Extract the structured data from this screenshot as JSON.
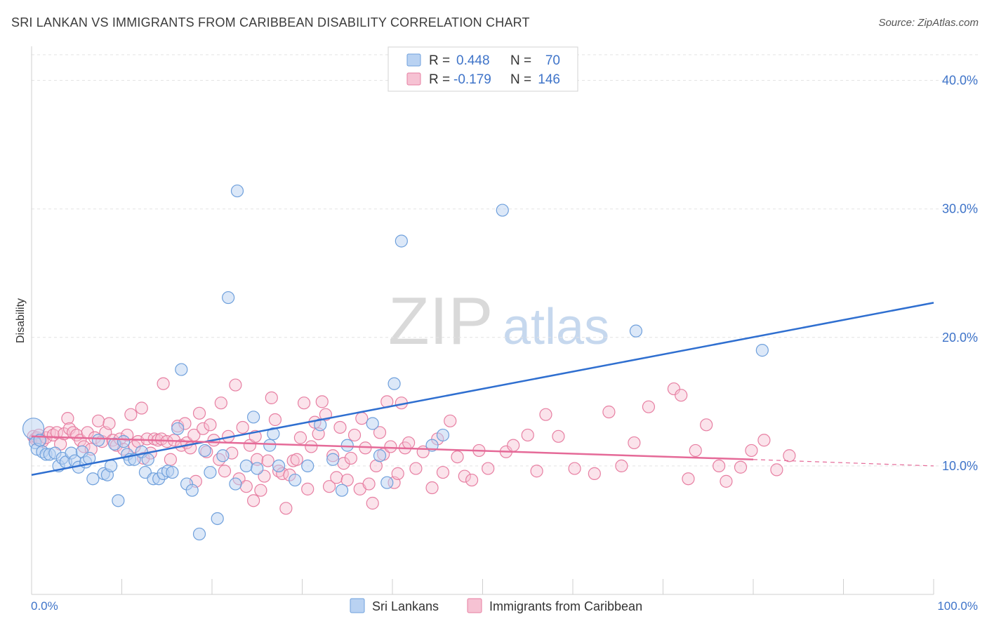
{
  "header": {
    "title": "SRI LANKAN VS IMMIGRANTS FROM CARIBBEAN DISABILITY CORRELATION CHART",
    "source": "Source: ZipAtlas.com"
  },
  "watermark": {
    "zip": "ZIP",
    "atlas": "atlas"
  },
  "stats": [
    {
      "r_label": "R =",
      "r_value": "0.448",
      "n_label": "N =",
      "n_value": "70"
    },
    {
      "r_label": "R =",
      "r_value": "-0.179",
      "n_label": "N =",
      "n_value": "146"
    }
  ],
  "colors": {
    "blue": "#6fa0dc",
    "blue_fill": "#b9d2f2",
    "blue_line": "#2f6fd0",
    "pink": "#e77fa2",
    "pink_fill": "#f6c2d3",
    "pink_line": "#e56a98",
    "axis_text": "#3f74c9"
  },
  "chart_data": {
    "type": "scatter",
    "title": "SRI LANKAN VS IMMIGRANTS FROM CARIBBEAN DISABILITY CORRELATION CHART",
    "xlabel": "",
    "ylabel": "Disability",
    "xlim": [
      0,
      100
    ],
    "ylim": [
      0,
      42
    ],
    "x_tick_labels": [
      "0.0%",
      "100.0%"
    ],
    "y_ticks": [
      10,
      20,
      30,
      40
    ],
    "y_tick_labels": [
      "10.0%",
      "20.0%",
      "30.0%",
      "40.0%"
    ],
    "grid": "horizontal dashed",
    "legend_position": "bottom",
    "series": [
      {
        "name": "Sri Lankans",
        "color": "#6fa0dc",
        "trend": {
          "x": [
            0,
            100
          ],
          "y": [
            9.3,
            22.7
          ]
        },
        "points": [
          [
            0.2,
            12.9
          ],
          [
            0.4,
            11.8
          ],
          [
            0.6,
            11.3
          ],
          [
            0.9,
            12.0
          ],
          [
            1.2,
            11.1
          ],
          [
            1.6,
            10.9
          ],
          [
            2.0,
            10.9
          ],
          [
            2.6,
            11.0
          ],
          [
            3.0,
            10.0
          ],
          [
            3.4,
            10.6
          ],
          [
            3.8,
            10.3
          ],
          [
            4.4,
            11.0
          ],
          [
            4.8,
            10.4
          ],
          [
            5.2,
            9.9
          ],
          [
            5.6,
            11.1
          ],
          [
            6.0,
            10.3
          ],
          [
            6.4,
            10.6
          ],
          [
            6.8,
            9.0
          ],
          [
            7.4,
            12.0
          ],
          [
            8.0,
            9.4
          ],
          [
            8.4,
            9.3
          ],
          [
            8.8,
            10.0
          ],
          [
            9.2,
            11.7
          ],
          [
            9.6,
            7.3
          ],
          [
            10.2,
            11.9
          ],
          [
            10.6,
            10.9
          ],
          [
            10.9,
            10.5
          ],
          [
            11.4,
            10.5
          ],
          [
            12.2,
            11.1
          ],
          [
            12.6,
            9.5
          ],
          [
            12.9,
            10.5
          ],
          [
            13.5,
            9.0
          ],
          [
            14.1,
            9.0
          ],
          [
            14.6,
            9.4
          ],
          [
            15.1,
            9.6
          ],
          [
            15.6,
            9.5
          ],
          [
            16.2,
            12.9
          ],
          [
            16.6,
            17.5
          ],
          [
            17.2,
            8.6
          ],
          [
            17.8,
            8.1
          ],
          [
            18.6,
            4.7
          ],
          [
            19.2,
            11.2
          ],
          [
            19.8,
            9.5
          ],
          [
            20.6,
            5.9
          ],
          [
            21.2,
            10.8
          ],
          [
            21.8,
            23.1
          ],
          [
            22.6,
            8.6
          ],
          [
            22.8,
            31.4
          ],
          [
            23.8,
            10.0
          ],
          [
            24.6,
            13.8
          ],
          [
            25.0,
            9.8
          ],
          [
            26.4,
            11.6
          ],
          [
            26.8,
            12.5
          ],
          [
            27.4,
            10.0
          ],
          [
            29.2,
            8.9
          ],
          [
            30.6,
            10.0
          ],
          [
            32.0,
            13.2
          ],
          [
            33.4,
            10.5
          ],
          [
            34.4,
            8.1
          ],
          [
            35.0,
            11.6
          ],
          [
            37.8,
            13.3
          ],
          [
            38.6,
            10.8
          ],
          [
            39.4,
            8.7
          ],
          [
            40.2,
            16.4
          ],
          [
            41.0,
            27.5
          ],
          [
            44.4,
            11.6
          ],
          [
            45.6,
            12.4
          ],
          [
            52.2,
            29.9
          ],
          [
            67.0,
            20.5
          ],
          [
            81.0,
            19.0
          ]
        ]
      },
      {
        "name": "Immigrants from Caribbean",
        "color": "#e77fa2",
        "trend": {
          "x": [
            0,
            80,
            100
          ],
          "y": [
            12.3,
            10.5,
            10.0
          ]
        },
        "points": [
          [
            0.2,
            12.3
          ],
          [
            0.4,
            12.1
          ],
          [
            0.6,
            12.2
          ],
          [
            0.8,
            12.4
          ],
          [
            1.0,
            12.0
          ],
          [
            1.2,
            11.9
          ],
          [
            1.6,
            12.2
          ],
          [
            2.0,
            12.6
          ],
          [
            2.4,
            12.4
          ],
          [
            2.8,
            12.6
          ],
          [
            3.2,
            11.7
          ],
          [
            3.6,
            12.5
          ],
          [
            4.0,
            13.7
          ],
          [
            4.2,
            12.9
          ],
          [
            4.6,
            12.6
          ],
          [
            5.0,
            12.4
          ],
          [
            5.4,
            12.0
          ],
          [
            5.8,
            11.5
          ],
          [
            6.2,
            12.6
          ],
          [
            6.6,
            11.3
          ],
          [
            7.0,
            12.2
          ],
          [
            7.4,
            13.5
          ],
          [
            7.8,
            11.9
          ],
          [
            8.2,
            12.6
          ],
          [
            8.6,
            13.3
          ],
          [
            9.0,
            12.0
          ],
          [
            9.4,
            11.6
          ],
          [
            9.8,
            12.1
          ],
          [
            10.2,
            11.3
          ],
          [
            10.6,
            12.4
          ],
          [
            11.0,
            14.0
          ],
          [
            11.4,
            11.5
          ],
          [
            11.8,
            11.9
          ],
          [
            12.2,
            14.5
          ],
          [
            12.4,
            10.6
          ],
          [
            12.8,
            12.1
          ],
          [
            13.2,
            11.0
          ],
          [
            13.6,
            12.1
          ],
          [
            14.0,
            12.0
          ],
          [
            14.4,
            12.1
          ],
          [
            14.6,
            16.4
          ],
          [
            15.0,
            11.9
          ],
          [
            15.4,
            10.5
          ],
          [
            15.8,
            12.0
          ],
          [
            16.2,
            13.1
          ],
          [
            16.6,
            11.6
          ],
          [
            17.0,
            13.3
          ],
          [
            17.2,
            11.8
          ],
          [
            17.6,
            11.4
          ],
          [
            18.0,
            12.4
          ],
          [
            18.2,
            8.8
          ],
          [
            18.6,
            14.1
          ],
          [
            19.0,
            12.9
          ],
          [
            19.4,
            11.1
          ],
          [
            19.8,
            13.2
          ],
          [
            20.2,
            12.0
          ],
          [
            20.8,
            10.5
          ],
          [
            21.0,
            14.9
          ],
          [
            21.4,
            9.6
          ],
          [
            21.8,
            12.3
          ],
          [
            22.2,
            11.0
          ],
          [
            22.6,
            16.3
          ],
          [
            23.0,
            9.0
          ],
          [
            23.4,
            13.0
          ],
          [
            23.8,
            8.4
          ],
          [
            24.2,
            11.6
          ],
          [
            24.6,
            7.3
          ],
          [
            24.8,
            12.3
          ],
          [
            25.0,
            10.5
          ],
          [
            25.4,
            8.1
          ],
          [
            25.8,
            9.2
          ],
          [
            26.2,
            10.4
          ],
          [
            26.6,
            15.3
          ],
          [
            27.0,
            13.6
          ],
          [
            27.4,
            9.6
          ],
          [
            27.8,
            9.4
          ],
          [
            28.2,
            6.7
          ],
          [
            28.6,
            9.3
          ],
          [
            29.0,
            10.4
          ],
          [
            29.4,
            10.5
          ],
          [
            29.8,
            12.2
          ],
          [
            30.2,
            14.9
          ],
          [
            30.6,
            8.2
          ],
          [
            31.0,
            11.5
          ],
          [
            31.4,
            13.4
          ],
          [
            31.8,
            12.5
          ],
          [
            32.2,
            15.0
          ],
          [
            32.6,
            14.0
          ],
          [
            33.0,
            8.4
          ],
          [
            33.4,
            10.8
          ],
          [
            33.8,
            9.1
          ],
          [
            34.2,
            13.0
          ],
          [
            34.6,
            10.2
          ],
          [
            35.0,
            8.9
          ],
          [
            35.4,
            10.6
          ],
          [
            35.8,
            12.4
          ],
          [
            36.4,
            8.2
          ],
          [
            36.6,
            13.7
          ],
          [
            37.0,
            11.4
          ],
          [
            37.4,
            8.6
          ],
          [
            37.8,
            7.1
          ],
          [
            38.2,
            10.0
          ],
          [
            38.6,
            12.6
          ],
          [
            39.0,
            10.9
          ],
          [
            39.4,
            15.0
          ],
          [
            39.8,
            11.5
          ],
          [
            40.2,
            8.7
          ],
          [
            40.6,
            9.4
          ],
          [
            41.0,
            14.9
          ],
          [
            41.4,
            11.4
          ],
          [
            41.8,
            11.8
          ],
          [
            42.6,
            9.8
          ],
          [
            43.4,
            11.1
          ],
          [
            44.4,
            8.3
          ],
          [
            45.0,
            12.1
          ],
          [
            45.6,
            9.5
          ],
          [
            46.4,
            13.5
          ],
          [
            47.2,
            10.7
          ],
          [
            48.0,
            9.2
          ],
          [
            48.8,
            8.9
          ],
          [
            49.6,
            11.2
          ],
          [
            50.6,
            9.8
          ],
          [
            52.6,
            11.1
          ],
          [
            53.4,
            11.6
          ],
          [
            55.0,
            12.4
          ],
          [
            56.0,
            9.6
          ],
          [
            57.0,
            14.0
          ],
          [
            58.4,
            12.3
          ],
          [
            60.2,
            9.8
          ],
          [
            62.4,
            9.4
          ],
          [
            64.0,
            14.2
          ],
          [
            65.4,
            10.0
          ],
          [
            66.8,
            11.8
          ],
          [
            68.4,
            14.6
          ],
          [
            71.2,
            16.0
          ],
          [
            72.0,
            15.5
          ],
          [
            72.8,
            9.0
          ],
          [
            73.6,
            11.2
          ],
          [
            74.8,
            13.2
          ],
          [
            76.2,
            10.0
          ],
          [
            77.0,
            8.8
          ],
          [
            78.6,
            9.9
          ],
          [
            79.8,
            11.2
          ],
          [
            81.2,
            12.0
          ],
          [
            82.6,
            9.7
          ],
          [
            84.0,
            10.8
          ]
        ]
      }
    ]
  },
  "legend": {
    "items": [
      "Sri Lankans",
      "Immigrants from Caribbean"
    ]
  }
}
